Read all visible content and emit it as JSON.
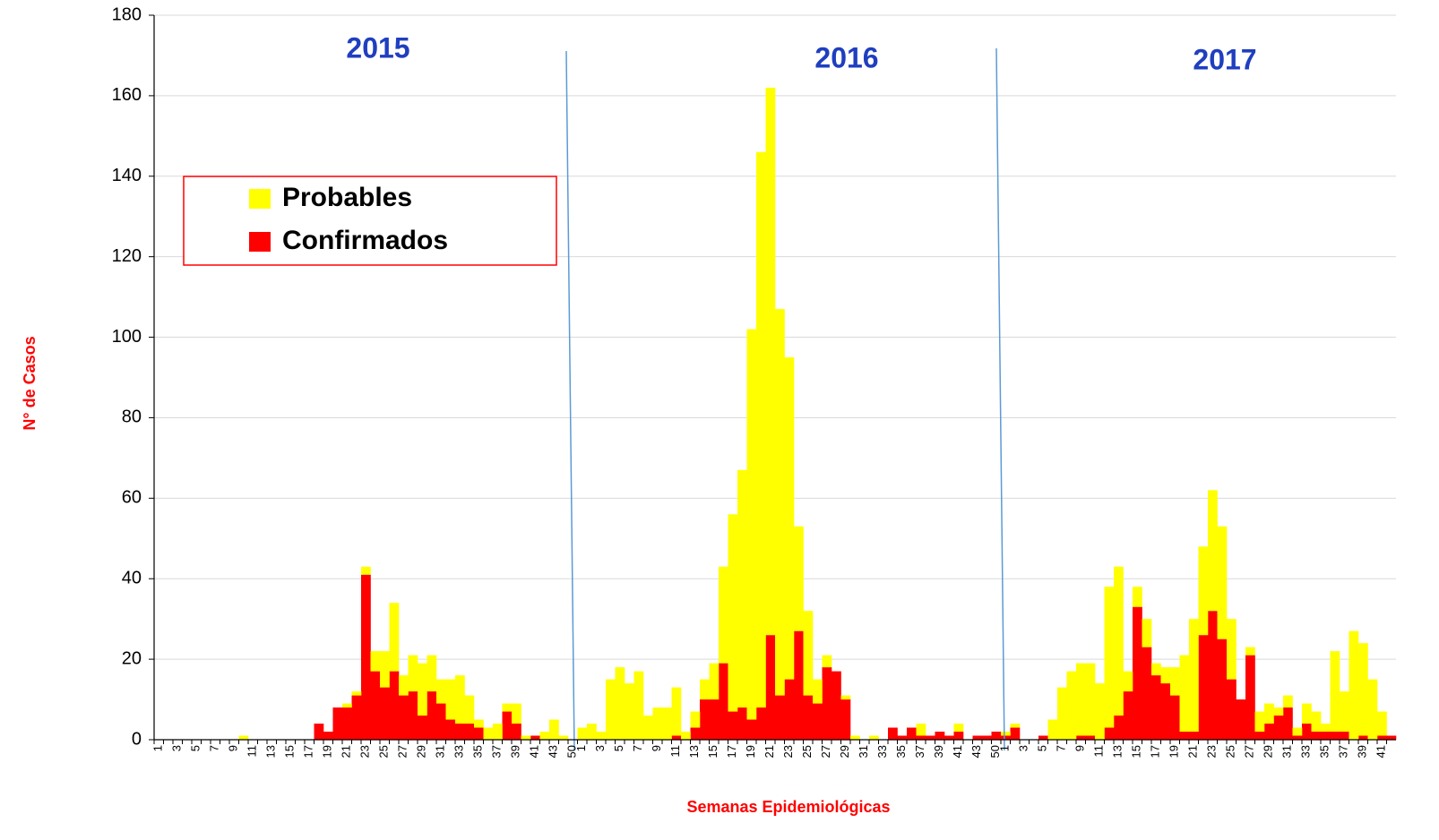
{
  "chart_data": {
    "type": "stacked-bar",
    "xlabel": "Semanas Epidemiológicas",
    "ylabel": "N° de Casos",
    "annotations": [
      "2015",
      "2016",
      "2017"
    ],
    "categories": [
      "1",
      null,
      "3",
      null,
      "5",
      null,
      "7",
      null,
      "9",
      null,
      "11",
      null,
      "13",
      null,
      "15",
      null,
      "17",
      null,
      "19",
      null,
      "21",
      null,
      "23",
      null,
      "25",
      null,
      "27",
      null,
      "29",
      null,
      "31",
      null,
      "33",
      null,
      "35",
      null,
      "37",
      null,
      "39",
      null,
      "41",
      null,
      "43",
      null,
      "50",
      "1",
      null,
      "3",
      null,
      "5",
      null,
      "7",
      null,
      "9",
      null,
      "11",
      null,
      "13",
      null,
      "15",
      null,
      "17",
      null,
      "19",
      null,
      "21",
      null,
      "23",
      null,
      "25",
      null,
      "27",
      null,
      "29",
      null,
      "31",
      null,
      "33",
      null,
      "35",
      null,
      "37",
      null,
      "39",
      null,
      "41",
      null,
      "43",
      null,
      "50",
      "1",
      null,
      "3",
      null,
      "5",
      null,
      "7",
      null,
      "9",
      null,
      "11",
      null,
      "13",
      null,
      "15",
      null,
      "17",
      null,
      "19",
      null,
      "21",
      null,
      "23",
      null,
      "25",
      null,
      "27",
      null,
      "29",
      null,
      "31",
      null,
      "33",
      null,
      "35",
      null,
      "37",
      null,
      "39",
      null,
      "41",
      null
    ],
    "series": [
      {
        "name": "Confirmados",
        "color": "#ff0000",
        "values": [
          0,
          0,
          0,
          0,
          0,
          0,
          0,
          0,
          0,
          0,
          0,
          0,
          0,
          0,
          0,
          0,
          0,
          4,
          2,
          8,
          8,
          11,
          41,
          17,
          13,
          17,
          11,
          12,
          6,
          12,
          9,
          5,
          4,
          4,
          3,
          0,
          0,
          7,
          4,
          0,
          1,
          0,
          0,
          0,
          0,
          0,
          0,
          0,
          0,
          0,
          0,
          0,
          0,
          0,
          0,
          1,
          0,
          3,
          10,
          10,
          19,
          7,
          8,
          5,
          8,
          26,
          11,
          15,
          27,
          11,
          9,
          18,
          17,
          10,
          0,
          0,
          0,
          0,
          3,
          1,
          3,
          1,
          1,
          2,
          1,
          2,
          0,
          1,
          1,
          2,
          1,
          3,
          0,
          0,
          1,
          0,
          0,
          0,
          1,
          1,
          0,
          3,
          6,
          12,
          33,
          23,
          16,
          14,
          11,
          2,
          2,
          26,
          32,
          25,
          15,
          10,
          21,
          2,
          4,
          6,
          8,
          1,
          4,
          2,
          2,
          2,
          2,
          0,
          1,
          0,
          1,
          1
        ]
      },
      {
        "name": "Probables",
        "color": "#ffff00",
        "values": [
          0,
          0,
          0,
          0,
          0,
          0,
          0,
          0,
          0,
          1,
          0,
          0,
          0,
          0,
          0,
          0,
          0,
          0,
          0,
          0,
          1,
          1,
          2,
          5,
          9,
          17,
          5,
          9,
          13,
          9,
          6,
          10,
          12,
          7,
          2,
          3,
          4,
          2,
          5,
          1,
          0,
          2,
          5,
          1,
          0,
          3,
          4,
          2,
          15,
          18,
          14,
          17,
          6,
          8,
          8,
          12,
          2,
          4,
          5,
          9,
          24,
          49,
          59,
          97,
          138,
          136,
          96,
          80,
          26,
          21,
          6,
          3,
          0,
          1,
          1,
          0,
          1,
          0,
          0,
          0,
          0,
          3,
          0,
          0,
          0,
          2,
          0,
          0,
          0,
          0,
          1,
          1,
          0,
          0,
          0,
          5,
          13,
          17,
          18,
          18,
          14,
          35,
          37,
          5,
          5,
          7,
          3,
          4,
          7,
          19,
          28,
          22,
          30,
          28,
          15,
          0,
          2,
          5,
          5,
          2,
          3,
          2,
          5,
          5,
          2,
          20,
          10,
          27,
          23,
          15,
          6,
          0
        ]
      }
    ],
    "ylim": [
      0,
      180
    ],
    "yticks": [
      0,
      20,
      40,
      60,
      80,
      100,
      120,
      140,
      160,
      180
    ],
    "grid": true
  }
}
